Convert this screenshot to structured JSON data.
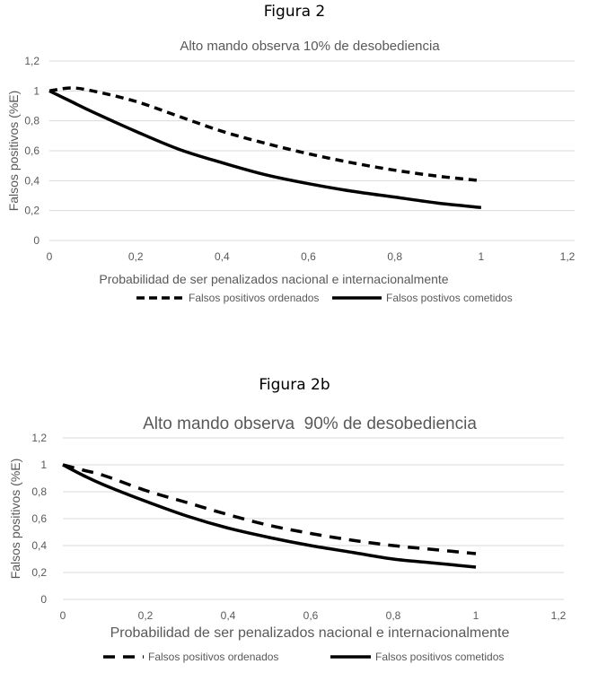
{
  "chart_data": [
    {
      "type": "line",
      "figure_label": "Figura 2",
      "title": "Alto mando observa 10% de desobediencia",
      "xlabel": "Probabilidad de ser penalizados nacional e internacionalmente",
      "ylabel": "Falsos positivos (%E)",
      "xlim": [
        0,
        1.2
      ],
      "ylim": [
        0,
        1.2
      ],
      "xticks": [
        "0",
        "0,2",
        "0,4",
        "0,6",
        "0,8",
        "1",
        "1,2"
      ],
      "yticks": [
        "0",
        "0,2",
        "0,4",
        "0,6",
        "0,8",
        "1",
        "1,2"
      ],
      "grid": true,
      "legend": "bottom",
      "x": [
        0,
        0.05,
        0.1,
        0.2,
        0.3,
        0.4,
        0.5,
        0.6,
        0.7,
        0.8,
        0.9,
        1
      ],
      "series": [
        {
          "name": "Falsos positivos ordenados",
          "style": "dashed",
          "values": [
            1,
            1.02,
            1.0,
            0.93,
            0.83,
            0.73,
            0.65,
            0.58,
            0.52,
            0.47,
            0.43,
            0.4
          ]
        },
        {
          "name": "Falsos postivos cometidos",
          "style": "solid",
          "values": [
            1,
            0.93,
            0.86,
            0.73,
            0.61,
            0.52,
            0.44,
            0.38,
            0.33,
            0.29,
            0.25,
            0.22
          ]
        }
      ]
    },
    {
      "type": "line",
      "figure_label": "Figura 2b",
      "title": "Alto mando observa  90% de desobediencia",
      "xlabel": "Probabilidad de ser penalizados nacional e internacionalmente",
      "ylabel": "Falsos positivos (%E)",
      "xlim": [
        0,
        1.2
      ],
      "ylim": [
        0,
        1.2
      ],
      "xticks": [
        "0",
        "0,2",
        "0,4",
        "0,6",
        "0,8",
        "1",
        "1,2"
      ],
      "yticks": [
        "0",
        "0,2",
        "0,4",
        "0,6",
        "0,8",
        "1",
        "1,2"
      ],
      "grid": true,
      "legend": "bottom",
      "x": [
        0,
        0.05,
        0.1,
        0.2,
        0.3,
        0.4,
        0.5,
        0.6,
        0.7,
        0.8,
        0.9,
        1
      ],
      "series": [
        {
          "name": "Falsos positivos ordenados",
          "style": "dashed",
          "values": [
            1,
            0.96,
            0.92,
            0.81,
            0.72,
            0.63,
            0.55,
            0.49,
            0.44,
            0.4,
            0.37,
            0.34
          ]
        },
        {
          "name": "Falsos positivos cometidos",
          "style": "solid",
          "values": [
            1,
            0.92,
            0.85,
            0.73,
            0.62,
            0.53,
            0.46,
            0.4,
            0.35,
            0.3,
            0.27,
            0.24
          ]
        }
      ]
    }
  ],
  "colors": {
    "line": "#000000",
    "grid": "#d9d9d9",
    "text": "#595959"
  }
}
